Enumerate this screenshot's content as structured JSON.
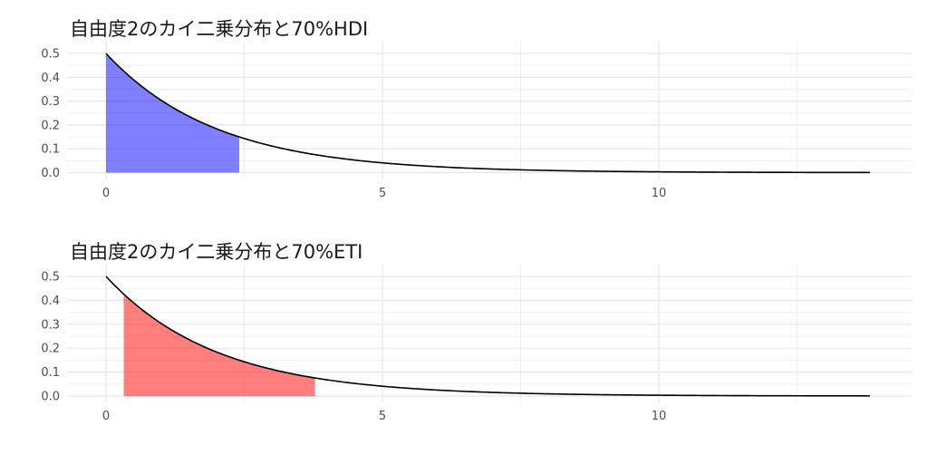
{
  "chart_data": [
    {
      "type": "area",
      "title": "自由度2のカイ二乗分布と70%HDI",
      "xlabel": "",
      "ylabel": "",
      "xlim": [
        -1.4,
        14.3
      ],
      "ylim": [
        0,
        0.5
      ],
      "x_ticks": [
        0,
        5,
        10
      ],
      "y_ticks": [
        0.0,
        0.1,
        0.2,
        0.3,
        0.4,
        0.5
      ],
      "y_tick_labels": [
        "0.0",
        "0.1",
        "0.2",
        "0.3",
        "0.4",
        "0.5"
      ],
      "grid": true,
      "series": [
        {
          "kind": "line",
          "color": "#000000",
          "function": "y = 0.5 * exp(-x / 2)",
          "x": [
            0,
            1,
            2,
            3,
            4,
            5,
            6,
            7,
            8,
            9,
            10,
            11,
            12,
            13,
            13.82
          ],
          "y": [
            0.5,
            0.303,
            0.184,
            0.112,
            0.068,
            0.041,
            0.025,
            0.015,
            0.009,
            0.006,
            0.003,
            0.002,
            0.001,
            0.0008,
            0.0005
          ]
        },
        {
          "kind": "shaded_interval",
          "color": "#0000ff",
          "opacity": 0.5,
          "x_range": [
            0,
            2.41
          ]
        }
      ]
    },
    {
      "type": "area",
      "title": "自由度2のカイ二乗分布と70%ETI",
      "xlabel": "",
      "ylabel": "",
      "xlim": [
        -1.4,
        14.3
      ],
      "ylim": [
        0,
        0.5
      ],
      "x_ticks": [
        0,
        5,
        10
      ],
      "y_ticks": [
        0.0,
        0.1,
        0.2,
        0.3,
        0.4,
        0.5
      ],
      "y_tick_labels": [
        "0.0",
        "0.1",
        "0.2",
        "0.3",
        "0.4",
        "0.5"
      ],
      "grid": true,
      "series": [
        {
          "kind": "line",
          "color": "#000000",
          "function": "y = 0.5 * exp(-x / 2)",
          "x": [
            0,
            1,
            2,
            3,
            4,
            5,
            6,
            7,
            8,
            9,
            10,
            11,
            12,
            13,
            13.82
          ],
          "y": [
            0.5,
            0.303,
            0.184,
            0.112,
            0.068,
            0.041,
            0.025,
            0.015,
            0.009,
            0.006,
            0.003,
            0.002,
            0.001,
            0.0008,
            0.0005
          ]
        },
        {
          "kind": "shaded_interval",
          "color": "#ff0000",
          "opacity": 0.5,
          "x_range": [
            0.32,
            3.78
          ]
        }
      ]
    }
  ]
}
